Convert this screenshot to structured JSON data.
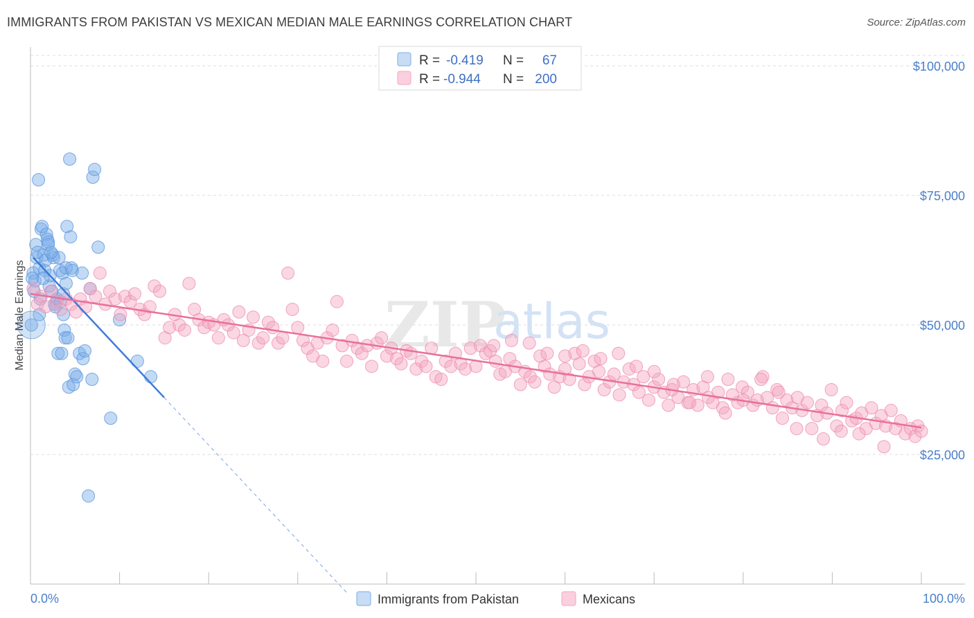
{
  "title": "IMMIGRANTS FROM PAKISTAN VS MEXICAN MEDIAN MALE EARNINGS CORRELATION CHART",
  "source": "Source: ZipAtlas.com",
  "watermark": {
    "zip": "ZIP",
    "atlas": "atlas"
  },
  "colors": {
    "blue": "#7aaee8",
    "blue_line": "#3d7bd9",
    "pink": "#f4a6c0",
    "pink_line": "#e8709a",
    "tick_text": "#4a7fcb"
  },
  "legend": {
    "rows": [
      {
        "r_label": "R =",
        "r_value": "-0.419",
        "n_label": "N =",
        "n_value": "67"
      },
      {
        "r_label": "R =",
        "r_value": "-0.944",
        "n_label": "N =",
        "n_value": "200"
      }
    ]
  },
  "chart_data": {
    "type": "scatter",
    "title": "IMMIGRANTS FROM PAKISTAN VS MEXICAN MEDIAN MALE EARNINGS CORRELATION CHART",
    "xlabel": "",
    "ylabel": "Median Male Earnings",
    "x_tick_labels": [
      "0.0%",
      "100.0%"
    ],
    "y_tick_labels": [
      "$25,000",
      "$50,000",
      "$75,000",
      "$100,000"
    ],
    "y_ticks": [
      25000,
      50000,
      75000,
      100000
    ],
    "xlim": [
      0,
      100
    ],
    "ylim": [
      0,
      102000
    ],
    "grid": true,
    "legend_position": "top-center",
    "series": [
      {
        "name": "Immigrants from Pakistan",
        "r": -0.419,
        "n": 67,
        "trend": {
          "x0": 0.3,
          "y0": 63000,
          "x1": 15,
          "y1": 36000,
          "x_dash_end": 35.5
        },
        "points": [
          [
            0.1,
            50000
          ],
          [
            0.3,
            60000
          ],
          [
            0.4,
            56500
          ],
          [
            0.5,
            58500
          ],
          [
            0.6,
            65500
          ],
          [
            0.7,
            63000
          ],
          [
            0.8,
            64000
          ],
          [
            0.9,
            78000
          ],
          [
            1.0,
            61000
          ],
          [
            1.1,
            55000
          ],
          [
            1.2,
            68500
          ],
          [
            1.3,
            69000
          ],
          [
            1.5,
            63500
          ],
          [
            1.6,
            60500
          ],
          [
            1.7,
            62500
          ],
          [
            1.8,
            67500
          ],
          [
            1.9,
            66500
          ],
          [
            2.0,
            65500
          ],
          [
            2.1,
            57500
          ],
          [
            2.2,
            59500
          ],
          [
            2.4,
            56500
          ],
          [
            2.5,
            63500
          ],
          [
            2.6,
            63000
          ],
          [
            2.7,
            54000
          ],
          [
            2.8,
            53500
          ],
          [
            3.0,
            55000
          ],
          [
            3.1,
            44500
          ],
          [
            3.2,
            63000
          ],
          [
            3.3,
            60500
          ],
          [
            3.4,
            54500
          ],
          [
            3.5,
            44500
          ],
          [
            3.6,
            60000
          ],
          [
            3.7,
            52000
          ],
          [
            3.8,
            49000
          ],
          [
            3.9,
            47500
          ],
          [
            4.0,
            61000
          ],
          [
            4.1,
            69000
          ],
          [
            4.2,
            47500
          ],
          [
            4.3,
            38000
          ],
          [
            4.4,
            82000
          ],
          [
            4.5,
            67000
          ],
          [
            4.6,
            61000
          ],
          [
            4.7,
            60500
          ],
          [
            4.8,
            38500
          ],
          [
            5.0,
            40500
          ],
          [
            5.2,
            40000
          ],
          [
            5.5,
            44500
          ],
          [
            5.8,
            60000
          ],
          [
            5.9,
            43500
          ],
          [
            6.1,
            45000
          ],
          [
            6.5,
            17000
          ],
          [
            6.7,
            57000
          ],
          [
            6.9,
            39500
          ],
          [
            7.0,
            78500
          ],
          [
            7.2,
            80000
          ],
          [
            7.6,
            65000
          ],
          [
            9.0,
            32000
          ],
          [
            10.0,
            51000
          ],
          [
            12.0,
            43000
          ],
          [
            13.5,
            40000
          ],
          [
            1.4,
            59000
          ],
          [
            2.3,
            64000
          ],
          [
            0.2,
            59000
          ],
          [
            3.7,
            56000
          ],
          [
            1.0,
            52000
          ],
          [
            4.0,
            58000
          ],
          [
            2.0,
            66000
          ]
        ]
      },
      {
        "name": "Mexicans",
        "r": -0.944,
        "n": 200,
        "trend": {
          "x0": 0,
          "y0": 56000,
          "x1": 100,
          "y1": 30200
        },
        "points": [
          [
            0.3,
            57000
          ],
          [
            0.8,
            54000
          ],
          [
            1.2,
            55500
          ],
          [
            1.7,
            53500
          ],
          [
            2.3,
            56500
          ],
          [
            2.9,
            54500
          ],
          [
            3.4,
            53000
          ],
          [
            4.0,
            55000
          ],
          [
            4.6,
            54000
          ],
          [
            5.1,
            52500
          ],
          [
            5.6,
            55000
          ],
          [
            6.2,
            53500
          ],
          [
            6.7,
            57000
          ],
          [
            7.3,
            55500
          ],
          [
            7.8,
            60000
          ],
          [
            8.4,
            54000
          ],
          [
            8.9,
            56500
          ],
          [
            9.5,
            55000
          ],
          [
            10.1,
            52000
          ],
          [
            10.6,
            55500
          ],
          [
            11.2,
            54500
          ],
          [
            11.7,
            56000
          ],
          [
            12.3,
            53000
          ],
          [
            12.8,
            52000
          ],
          [
            13.4,
            53500
          ],
          [
            13.9,
            57500
          ],
          [
            14.5,
            56500
          ],
          [
            15.1,
            47500
          ],
          [
            15.6,
            49500
          ],
          [
            16.2,
            52000
          ],
          [
            16.7,
            50000
          ],
          [
            17.3,
            49000
          ],
          [
            17.8,
            58000
          ],
          [
            18.4,
            53000
          ],
          [
            18.9,
            51000
          ],
          [
            19.5,
            49500
          ],
          [
            20.0,
            50500
          ],
          [
            20.6,
            50000
          ],
          [
            21.1,
            47500
          ],
          [
            21.7,
            51000
          ],
          [
            22.2,
            50000
          ],
          [
            22.8,
            48500
          ],
          [
            23.4,
            52500
          ],
          [
            23.9,
            47000
          ],
          [
            24.5,
            49000
          ],
          [
            25.0,
            51500
          ],
          [
            25.6,
            46500
          ],
          [
            26.1,
            47500
          ],
          [
            26.7,
            50500
          ],
          [
            27.2,
            49500
          ],
          [
            27.8,
            46500
          ],
          [
            28.3,
            47500
          ],
          [
            28.9,
            60000
          ],
          [
            29.4,
            53000
          ],
          [
            30.0,
            49500
          ],
          [
            30.6,
            47000
          ],
          [
            31.1,
            45500
          ],
          [
            31.7,
            44000
          ],
          [
            32.2,
            46500
          ],
          [
            32.8,
            43000
          ],
          [
            33.3,
            47500
          ],
          [
            33.9,
            49000
          ],
          [
            34.4,
            54500
          ],
          [
            35.0,
            46000
          ],
          [
            35.5,
            43000
          ],
          [
            36.1,
            47000
          ],
          [
            36.7,
            45500
          ],
          [
            37.2,
            44500
          ],
          [
            37.8,
            46000
          ],
          [
            38.3,
            42000
          ],
          [
            38.9,
            46500
          ],
          [
            39.4,
            47500
          ],
          [
            40.0,
            44000
          ],
          [
            40.5,
            45500
          ],
          [
            41.1,
            43500
          ],
          [
            41.6,
            42500
          ],
          [
            42.2,
            45000
          ],
          [
            42.7,
            44500
          ],
          [
            43.3,
            41500
          ],
          [
            43.9,
            43000
          ],
          [
            44.4,
            42000
          ],
          [
            45.0,
            45500
          ],
          [
            45.5,
            40000
          ],
          [
            46.1,
            39500
          ],
          [
            46.6,
            43000
          ],
          [
            47.2,
            42000
          ],
          [
            47.7,
            44500
          ],
          [
            48.3,
            42500
          ],
          [
            48.8,
            41500
          ],
          [
            49.4,
            45500
          ],
          [
            50.0,
            42000
          ],
          [
            50.5,
            46000
          ],
          [
            51.1,
            44500
          ],
          [
            51.6,
            45000
          ],
          [
            52.2,
            43000
          ],
          [
            52.7,
            40500
          ],
          [
            53.3,
            41000
          ],
          [
            53.8,
            43500
          ],
          [
            54.4,
            42000
          ],
          [
            55.0,
            38500
          ],
          [
            55.5,
            41000
          ],
          [
            56.1,
            40000
          ],
          [
            56.6,
            39000
          ],
          [
            57.2,
            44000
          ],
          [
            57.7,
            42000
          ],
          [
            58.3,
            40500
          ],
          [
            58.8,
            38000
          ],
          [
            59.4,
            40000
          ],
          [
            60.0,
            41500
          ],
          [
            60.5,
            39500
          ],
          [
            61.1,
            44500
          ],
          [
            61.6,
            42500
          ],
          [
            62.2,
            38500
          ],
          [
            62.7,
            40000
          ],
          [
            63.3,
            43000
          ],
          [
            63.8,
            41000
          ],
          [
            64.4,
            37500
          ],
          [
            65.0,
            39000
          ],
          [
            65.5,
            40500
          ],
          [
            66.1,
            36500
          ],
          [
            66.6,
            39000
          ],
          [
            67.2,
            41500
          ],
          [
            67.7,
            38500
          ],
          [
            68.3,
            37000
          ],
          [
            68.8,
            40000
          ],
          [
            69.4,
            35500
          ],
          [
            70.0,
            38000
          ],
          [
            70.5,
            39500
          ],
          [
            71.1,
            37000
          ],
          [
            71.6,
            34500
          ],
          [
            72.2,
            38500
          ],
          [
            72.7,
            36000
          ],
          [
            73.3,
            39000
          ],
          [
            73.8,
            35000
          ],
          [
            74.4,
            37500
          ],
          [
            74.9,
            34500
          ],
          [
            75.5,
            38000
          ],
          [
            76.1,
            36000
          ],
          [
            76.6,
            35000
          ],
          [
            77.2,
            37000
          ],
          [
            77.7,
            34000
          ],
          [
            78.3,
            39500
          ],
          [
            78.8,
            36500
          ],
          [
            79.4,
            35000
          ],
          [
            79.9,
            38000
          ],
          [
            80.5,
            37000
          ],
          [
            81.1,
            34500
          ],
          [
            81.6,
            35500
          ],
          [
            82.2,
            40000
          ],
          [
            82.7,
            36000
          ],
          [
            83.3,
            34000
          ],
          [
            83.8,
            37500
          ],
          [
            84.4,
            32000
          ],
          [
            84.9,
            35500
          ],
          [
            85.5,
            34000
          ],
          [
            86.1,
            36000
          ],
          [
            86.6,
            33500
          ],
          [
            87.2,
            35000
          ],
          [
            87.7,
            30000
          ],
          [
            88.3,
            32500
          ],
          [
            88.8,
            34500
          ],
          [
            89.4,
            33000
          ],
          [
            89.9,
            37500
          ],
          [
            90.5,
            30500
          ],
          [
            91.1,
            33500
          ],
          [
            91.6,
            35000
          ],
          [
            92.2,
            31500
          ],
          [
            92.7,
            32000
          ],
          [
            93.3,
            33000
          ],
          [
            93.8,
            30000
          ],
          [
            94.4,
            34000
          ],
          [
            94.9,
            31000
          ],
          [
            95.5,
            32500
          ],
          [
            96.0,
            30500
          ],
          [
            96.6,
            33500
          ],
          [
            97.1,
            30000
          ],
          [
            97.7,
            31500
          ],
          [
            98.2,
            29000
          ],
          [
            98.8,
            30000
          ],
          [
            99.3,
            28500
          ],
          [
            99.6,
            30500
          ],
          [
            100.0,
            29500
          ],
          [
            95.8,
            26500
          ],
          [
            93.0,
            29000
          ],
          [
            91.0,
            29500
          ],
          [
            89.0,
            28000
          ],
          [
            86.0,
            30000
          ],
          [
            84.0,
            37000
          ],
          [
            82.0,
            39500
          ],
          [
            80.0,
            35500
          ],
          [
            78.0,
            33000
          ],
          [
            76.0,
            40000
          ],
          [
            74.0,
            35000
          ],
          [
            72.0,
            37500
          ],
          [
            70.0,
            41000
          ],
          [
            68.0,
            42000
          ],
          [
            66.0,
            44500
          ],
          [
            64.0,
            43500
          ],
          [
            62.0,
            45000
          ],
          [
            60.0,
            44000
          ],
          [
            58.0,
            44500
          ],
          [
            56.0,
            46500
          ],
          [
            54.0,
            47000
          ],
          [
            52.0,
            46000
          ]
        ]
      }
    ]
  },
  "bottom_legend": [
    {
      "label": "Immigrants from Pakistan"
    },
    {
      "label": "Mexicans"
    }
  ]
}
